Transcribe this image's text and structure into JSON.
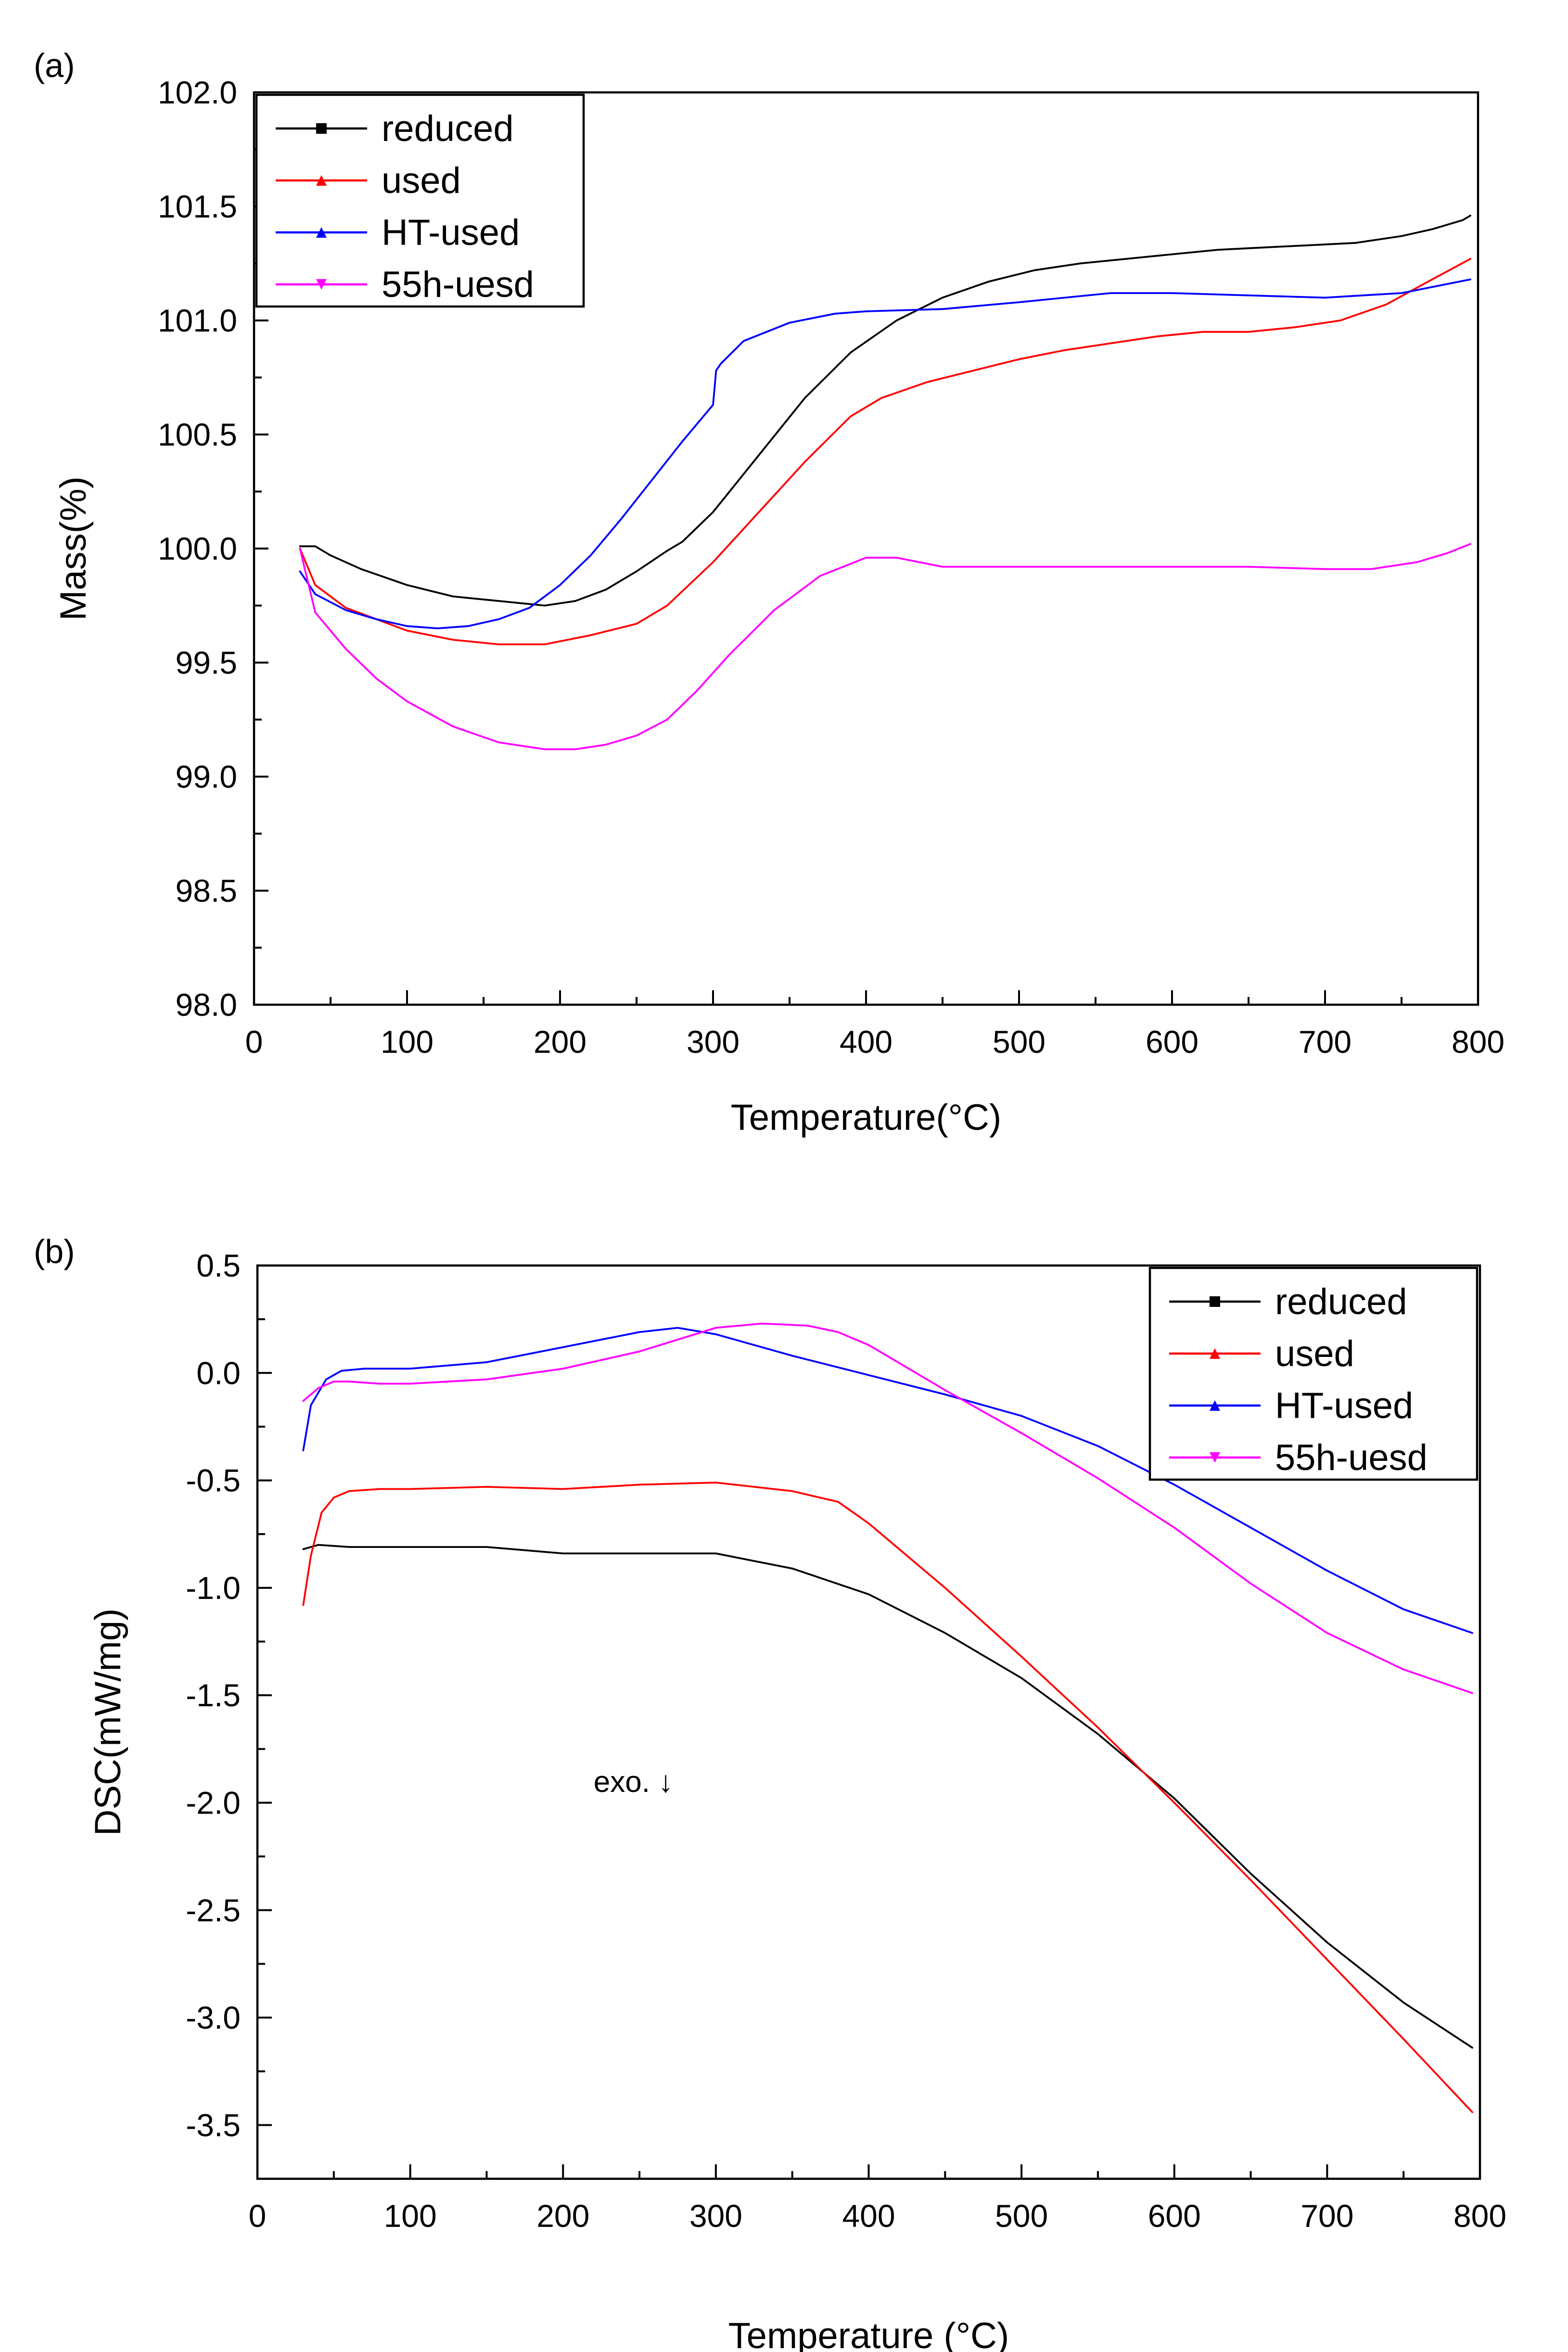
{
  "chart_data": [
    {
      "type": "line",
      "panel_label": "(a)",
      "title": "",
      "xlabel": "Temperature(°C)",
      "ylabel": "Mass(%)",
      "xlim": [
        0,
        800
      ],
      "ylim": [
        98.0,
        102.0
      ],
      "x_ticks": [
        0,
        100,
        200,
        300,
        400,
        500,
        600,
        700,
        800
      ],
      "x_tick_labels": [
        "0",
        "100",
        "200",
        "300",
        "400",
        "500",
        "600",
        "700",
        "800"
      ],
      "y_ticks": [
        98.0,
        98.5,
        99.0,
        99.5,
        100.0,
        100.5,
        101.0,
        101.5,
        102.0
      ],
      "y_tick_labels": [
        "98.0",
        "98.5",
        "99.0",
        "99.5",
        "100.0",
        "100.5",
        "101.0",
        "101.5",
        "102.0"
      ],
      "legend_position": "top-left",
      "grid": false,
      "series": [
        {
          "name": "reduced",
          "color": "#000000",
          "marker": "square",
          "x": [
            30,
            40,
            50,
            70,
            100,
            130,
            160,
            190,
            210,
            230,
            250,
            270,
            280,
            300,
            330,
            360,
            390,
            420,
            450,
            480,
            510,
            540,
            570,
            600,
            630,
            660,
            690,
            720,
            750,
            770,
            790,
            795
          ],
          "y": [
            100.01,
            100.01,
            99.97,
            99.91,
            99.84,
            99.79,
            99.77,
            99.75,
            99.77,
            99.82,
            99.9,
            99.99,
            100.03,
            100.16,
            100.41,
            100.66,
            100.86,
            101.0,
            101.1,
            101.17,
            101.22,
            101.25,
            101.27,
            101.29,
            101.31,
            101.32,
            101.33,
            101.34,
            101.37,
            101.4,
            101.44,
            101.46
          ]
        },
        {
          "name": "used",
          "color": "#ff0000",
          "marker": "triangle-up",
          "x": [
            30,
            40,
            60,
            80,
            100,
            130,
            160,
            190,
            220,
            250,
            270,
            300,
            330,
            360,
            390,
            410,
            440,
            470,
            500,
            530,
            560,
            590,
            620,
            650,
            680,
            710,
            740,
            770,
            795
          ],
          "y": [
            100.0,
            99.84,
            99.74,
            99.69,
            99.64,
            99.6,
            99.58,
            99.58,
            99.62,
            99.67,
            99.75,
            99.94,
            100.16,
            100.38,
            100.58,
            100.66,
            100.73,
            100.78,
            100.83,
            100.87,
            100.9,
            100.93,
            100.95,
            100.95,
            100.97,
            101.0,
            101.07,
            101.18,
            101.27
          ]
        },
        {
          "name": "HT-used",
          "color": "#0000ff",
          "marker": "triangle-up",
          "x": [
            30,
            40,
            60,
            80,
            100,
            120,
            140,
            160,
            180,
            200,
            220,
            240,
            260,
            280,
            300,
            302,
            305,
            320,
            350,
            380,
            400,
            450,
            500,
            560,
            600,
            650,
            700,
            750,
            795
          ],
          "y": [
            99.9,
            99.8,
            99.73,
            99.69,
            99.66,
            99.65,
            99.66,
            99.69,
            99.74,
            99.84,
            99.97,
            100.13,
            100.3,
            100.47,
            100.63,
            100.78,
            100.81,
            100.91,
            100.99,
            101.03,
            101.04,
            101.05,
            101.08,
            101.12,
            101.12,
            101.11,
            101.1,
            101.12,
            101.18
          ]
        },
        {
          "name": "55h-uesd",
          "color": "#ff00ff",
          "marker": "triangle-down",
          "x": [
            30,
            40,
            60,
            80,
            100,
            130,
            160,
            190,
            210,
            230,
            250,
            270,
            290,
            310,
            340,
            370,
            400,
            420,
            450,
            500,
            550,
            600,
            650,
            700,
            730,
            760,
            780,
            795
          ],
          "y": [
            100.0,
            99.72,
            99.56,
            99.43,
            99.33,
            99.22,
            99.15,
            99.12,
            99.12,
            99.14,
            99.18,
            99.25,
            99.38,
            99.53,
            99.73,
            99.88,
            99.96,
            99.96,
            99.92,
            99.92,
            99.92,
            99.92,
            99.92,
            99.91,
            99.91,
            99.94,
            99.98,
            100.02
          ]
        }
      ]
    },
    {
      "type": "line",
      "panel_label": "(b)",
      "title": "",
      "xlabel": "Temperature (°C)",
      "ylabel": "DSC(mW/mg)",
      "xlim": [
        0,
        800
      ],
      "ylim": [
        -3.75,
        0.5
      ],
      "x_ticks": [
        0,
        100,
        200,
        300,
        400,
        500,
        600,
        700,
        800
      ],
      "x_tick_labels": [
        "0",
        "100",
        "200",
        "300",
        "400",
        "500",
        "600",
        "700",
        "800"
      ],
      "y_ticks": [
        0.5,
        0.0,
        -0.5,
        -1.0,
        -1.5,
        -2.0,
        -2.5,
        -3.0,
        -3.5
      ],
      "y_tick_labels": [
        "0.5",
        "0.0",
        "-0.5",
        "-1.0",
        "-1.5",
        "-2.0",
        "-2.5",
        "-3.0",
        "-3.5"
      ],
      "legend_position": "top-right",
      "grid": false,
      "annotations": [
        {
          "text": "exo. ↓",
          "x": 220,
          "y": -1.95
        }
      ],
      "series": [
        {
          "name": "reduced",
          "color": "#000000",
          "marker": "square",
          "x": [
            30,
            40,
            60,
            100,
            150,
            200,
            250,
            300,
            350,
            400,
            450,
            500,
            550,
            600,
            650,
            700,
            750,
            795
          ],
          "y": [
            -0.82,
            -0.8,
            -0.81,
            -0.81,
            -0.81,
            -0.84,
            -0.84,
            -0.84,
            -0.91,
            -1.03,
            -1.21,
            -1.42,
            -1.68,
            -1.98,
            -2.33,
            -2.65,
            -2.93,
            -3.14
          ]
        },
        {
          "name": "used",
          "color": "#ff0000",
          "marker": "triangle-up",
          "x": [
            30,
            35,
            42,
            50,
            60,
            80,
            100,
            150,
            200,
            250,
            300,
            350,
            380,
            400,
            450,
            500,
            550,
            600,
            650,
            700,
            750,
            795
          ],
          "y": [
            -1.08,
            -0.85,
            -0.65,
            -0.58,
            -0.55,
            -0.54,
            -0.54,
            -0.53,
            -0.54,
            -0.52,
            -0.51,
            -0.55,
            -0.6,
            -0.7,
            -1.0,
            -1.32,
            -1.65,
            -2.0,
            -2.36,
            -2.73,
            -3.1,
            -3.44
          ]
        },
        {
          "name": "HT-used",
          "color": "#0000ff",
          "marker": "triangle-up",
          "x": [
            30,
            35,
            45,
            55,
            70,
            100,
            150,
            200,
            250,
            275,
            300,
            350,
            400,
            450,
            500,
            550,
            600,
            650,
            700,
            750,
            795
          ],
          "y": [
            -0.36,
            -0.15,
            -0.03,
            0.01,
            0.02,
            0.02,
            0.05,
            0.12,
            0.19,
            0.21,
            0.18,
            0.08,
            -0.01,
            -0.1,
            -0.2,
            -0.34,
            -0.52,
            -0.72,
            -0.92,
            -1.1,
            -1.21
          ]
        },
        {
          "name": "55h-uesd",
          "color": "#ff00ff",
          "marker": "triangle-down",
          "x": [
            30,
            40,
            50,
            60,
            80,
            100,
            150,
            200,
            250,
            300,
            330,
            360,
            380,
            400,
            450,
            500,
            550,
            600,
            650,
            700,
            750,
            795
          ],
          "y": [
            -0.13,
            -0.07,
            -0.04,
            -0.04,
            -0.05,
            -0.05,
            -0.03,
            0.02,
            0.1,
            0.21,
            0.23,
            0.22,
            0.19,
            0.13,
            -0.08,
            -0.28,
            -0.49,
            -0.72,
            -0.98,
            -1.21,
            -1.38,
            -1.49
          ]
        }
      ]
    }
  ]
}
